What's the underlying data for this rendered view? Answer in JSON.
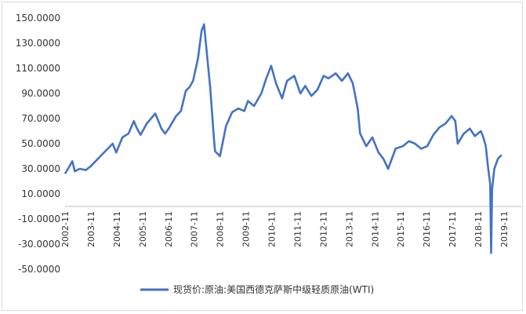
{
  "chart_data": {
    "type": "line",
    "title": "",
    "xlabel": "",
    "ylabel": "",
    "ylim": [
      -50,
      150
    ],
    "y_ticks": [
      "150.0000",
      "130.0000",
      "110.0000",
      "90.0000",
      "70.0000",
      "50.0000",
      "30.0000",
      "10.0000",
      "-10.0000",
      "-30.0000",
      "-50.0000"
    ],
    "x_ticks": [
      "2002-11",
      "2003-11",
      "2004-11",
      "2005-11",
      "2006-11",
      "2007-11",
      "2008-11",
      "2009-11",
      "2010-11",
      "2011-11",
      "2012-11",
      "2013-11",
      "2014-11",
      "2015-11",
      "2016-11",
      "2017-11",
      "2018-11",
      "2019-11"
    ],
    "grid": false,
    "legend_position": "bottom",
    "x_range": [
      2002.85,
      2020.85
    ],
    "series": [
      {
        "name": "现货价:原油:美国西德克萨斯中级轻质原油(WTI)",
        "color": "#4472c4",
        "x": [
          2002.85,
          2003.0,
          2003.15,
          2003.25,
          2003.45,
          2003.7,
          2003.9,
          2004.1,
          2004.3,
          2004.5,
          2004.8,
          2004.95,
          2005.2,
          2005.45,
          2005.67,
          2005.8,
          2005.95,
          2006.2,
          2006.55,
          2006.8,
          2006.95,
          2007.1,
          2007.4,
          2007.6,
          2007.8,
          2007.95,
          2008.1,
          2008.3,
          2008.45,
          2008.55,
          2008.65,
          2008.8,
          2008.95,
          2009.0,
          2009.2,
          2009.45,
          2009.7,
          2009.95,
          2010.2,
          2010.35,
          2010.6,
          2010.9,
          2011.1,
          2011.3,
          2011.5,
          2011.75,
          2011.95,
          2012.25,
          2012.5,
          2012.7,
          2012.95,
          2013.2,
          2013.45,
          2013.65,
          2013.95,
          2014.2,
          2014.45,
          2014.65,
          2014.85,
          2014.95,
          2015.2,
          2015.45,
          2015.7,
          2015.9,
          2016.1,
          2016.4,
          2016.7,
          2016.95,
          2017.2,
          2017.45,
          2017.7,
          2017.95,
          2018.2,
          2018.45,
          2018.7,
          2018.85,
          2018.95,
          2019.2,
          2019.45,
          2019.65,
          2019.9,
          2020.0,
          2020.1,
          2020.2,
          2020.28,
          2020.32,
          2020.36,
          2020.45,
          2020.6,
          2020.75
        ],
        "values": [
          26,
          31,
          36,
          28,
          30,
          29,
          32,
          36,
          40,
          44,
          50,
          43,
          55,
          58,
          68,
          62,
          57,
          66,
          74,
          62,
          58,
          62,
          72,
          76,
          92,
          95,
          100,
          118,
          140,
          145,
          125,
          95,
          55,
          44,
          40,
          64,
          75,
          78,
          76,
          84,
          80,
          90,
          102,
          112,
          98,
          86,
          100,
          104,
          90,
          96,
          88,
          93,
          104,
          102,
          106,
          100,
          106,
          98,
          78,
          58,
          48,
          55,
          43,
          38,
          30,
          46,
          48,
          52,
          50,
          46,
          48,
          57,
          63,
          66,
          72,
          68,
          50,
          58,
          62,
          56,
          60,
          55,
          48,
          30,
          18,
          -37,
          14,
          30,
          38,
          41
        ]
      }
    ]
  }
}
